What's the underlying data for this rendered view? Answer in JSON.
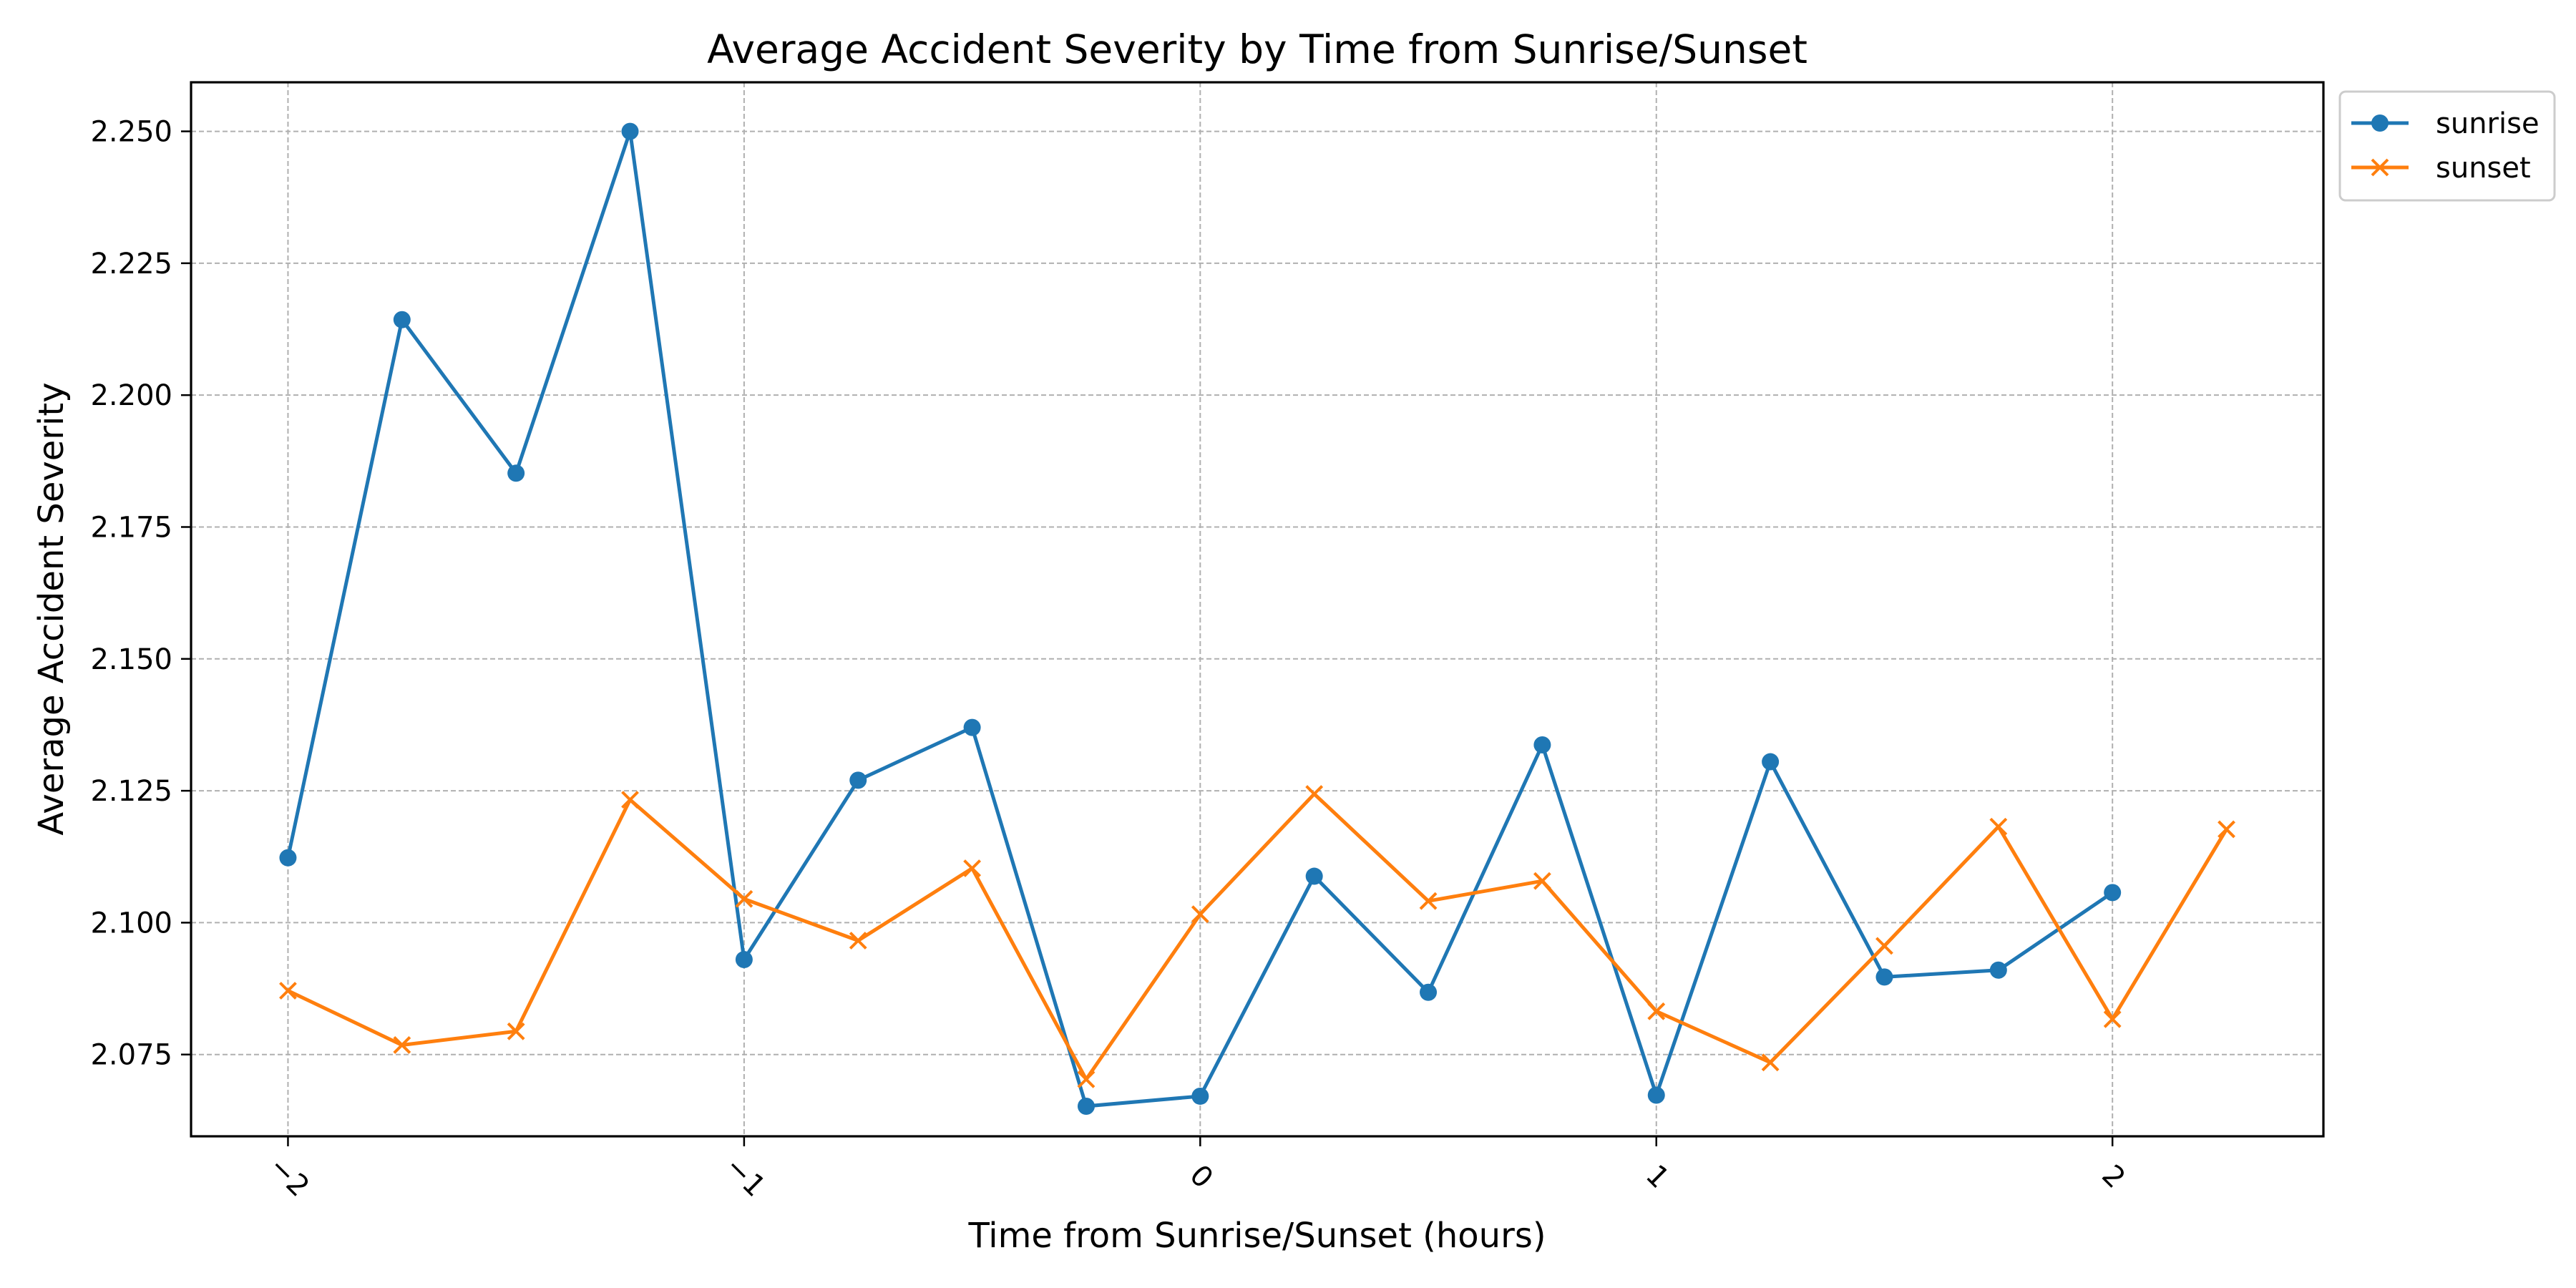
{
  "chart_data": {
    "type": "line",
    "title": "Average Accident Severity by Time from Sunrise/Sunset",
    "xlabel": "Time from Sunrise/Sunset (hours)",
    "ylabel": "Average Accident Severity",
    "x": [
      -2,
      -1.75,
      -1.5,
      -1.25,
      -1,
      -0.75,
      -0.5,
      -0.25,
      0,
      0.25,
      0.5,
      0.75,
      1,
      1.25,
      1.5,
      1.75,
      2,
      2.25
    ],
    "xlim": [
      -2.2125,
      2.4625
    ],
    "ylim": [
      2.0595,
      2.2593
    ],
    "xticks": [
      -2,
      -1,
      0,
      1,
      2
    ],
    "xtick_labels": [
      "−2",
      "−1",
      "0",
      "1",
      "2"
    ],
    "xtick_rotation": 45,
    "yticks": [
      2.075,
      2.1,
      2.125,
      2.15,
      2.175,
      2.2,
      2.225,
      2.25
    ],
    "ytick_labels": [
      "2.075",
      "2.100",
      "2.125",
      "2.150",
      "2.175",
      "2.200",
      "2.225",
      "2.250"
    ],
    "grid": true,
    "legend_position": "outside-top-right",
    "series": [
      {
        "name": "sunrise",
        "color": "#1f77b4",
        "marker": "circle",
        "x": [
          -2,
          -1.75,
          -1.5,
          -1.25,
          -1,
          -0.75,
          -0.5,
          -0.25,
          0,
          0.25,
          0.5,
          0.75,
          1,
          1.25,
          1.5,
          1.75,
          2
        ],
        "values": [
          2.1123,
          2.2143,
          2.1852,
          2.25,
          2.093,
          2.127,
          2.137,
          2.0652,
          2.0671,
          2.1088,
          2.0868,
          2.1337,
          2.0673,
          2.1305,
          2.0897,
          2.091,
          2.1057
        ]
      },
      {
        "name": "sunset",
        "color": "#ff7f0e",
        "marker": "x",
        "x": [
          -2,
          -1.75,
          -1.5,
          -1.25,
          -1,
          -0.75,
          -0.5,
          -0.25,
          0,
          0.25,
          0.5,
          0.75,
          1,
          1.25,
          1.5,
          1.75,
          2,
          2.25
        ],
        "values": [
          2.0871,
          2.0768,
          2.0794,
          2.1233,
          2.1045,
          2.0966,
          2.1103,
          2.0703,
          2.1016,
          2.1244,
          2.1041,
          2.1079,
          2.0832,
          2.0735,
          2.0956,
          2.1182,
          2.0817,
          2.1177
        ]
      }
    ]
  }
}
